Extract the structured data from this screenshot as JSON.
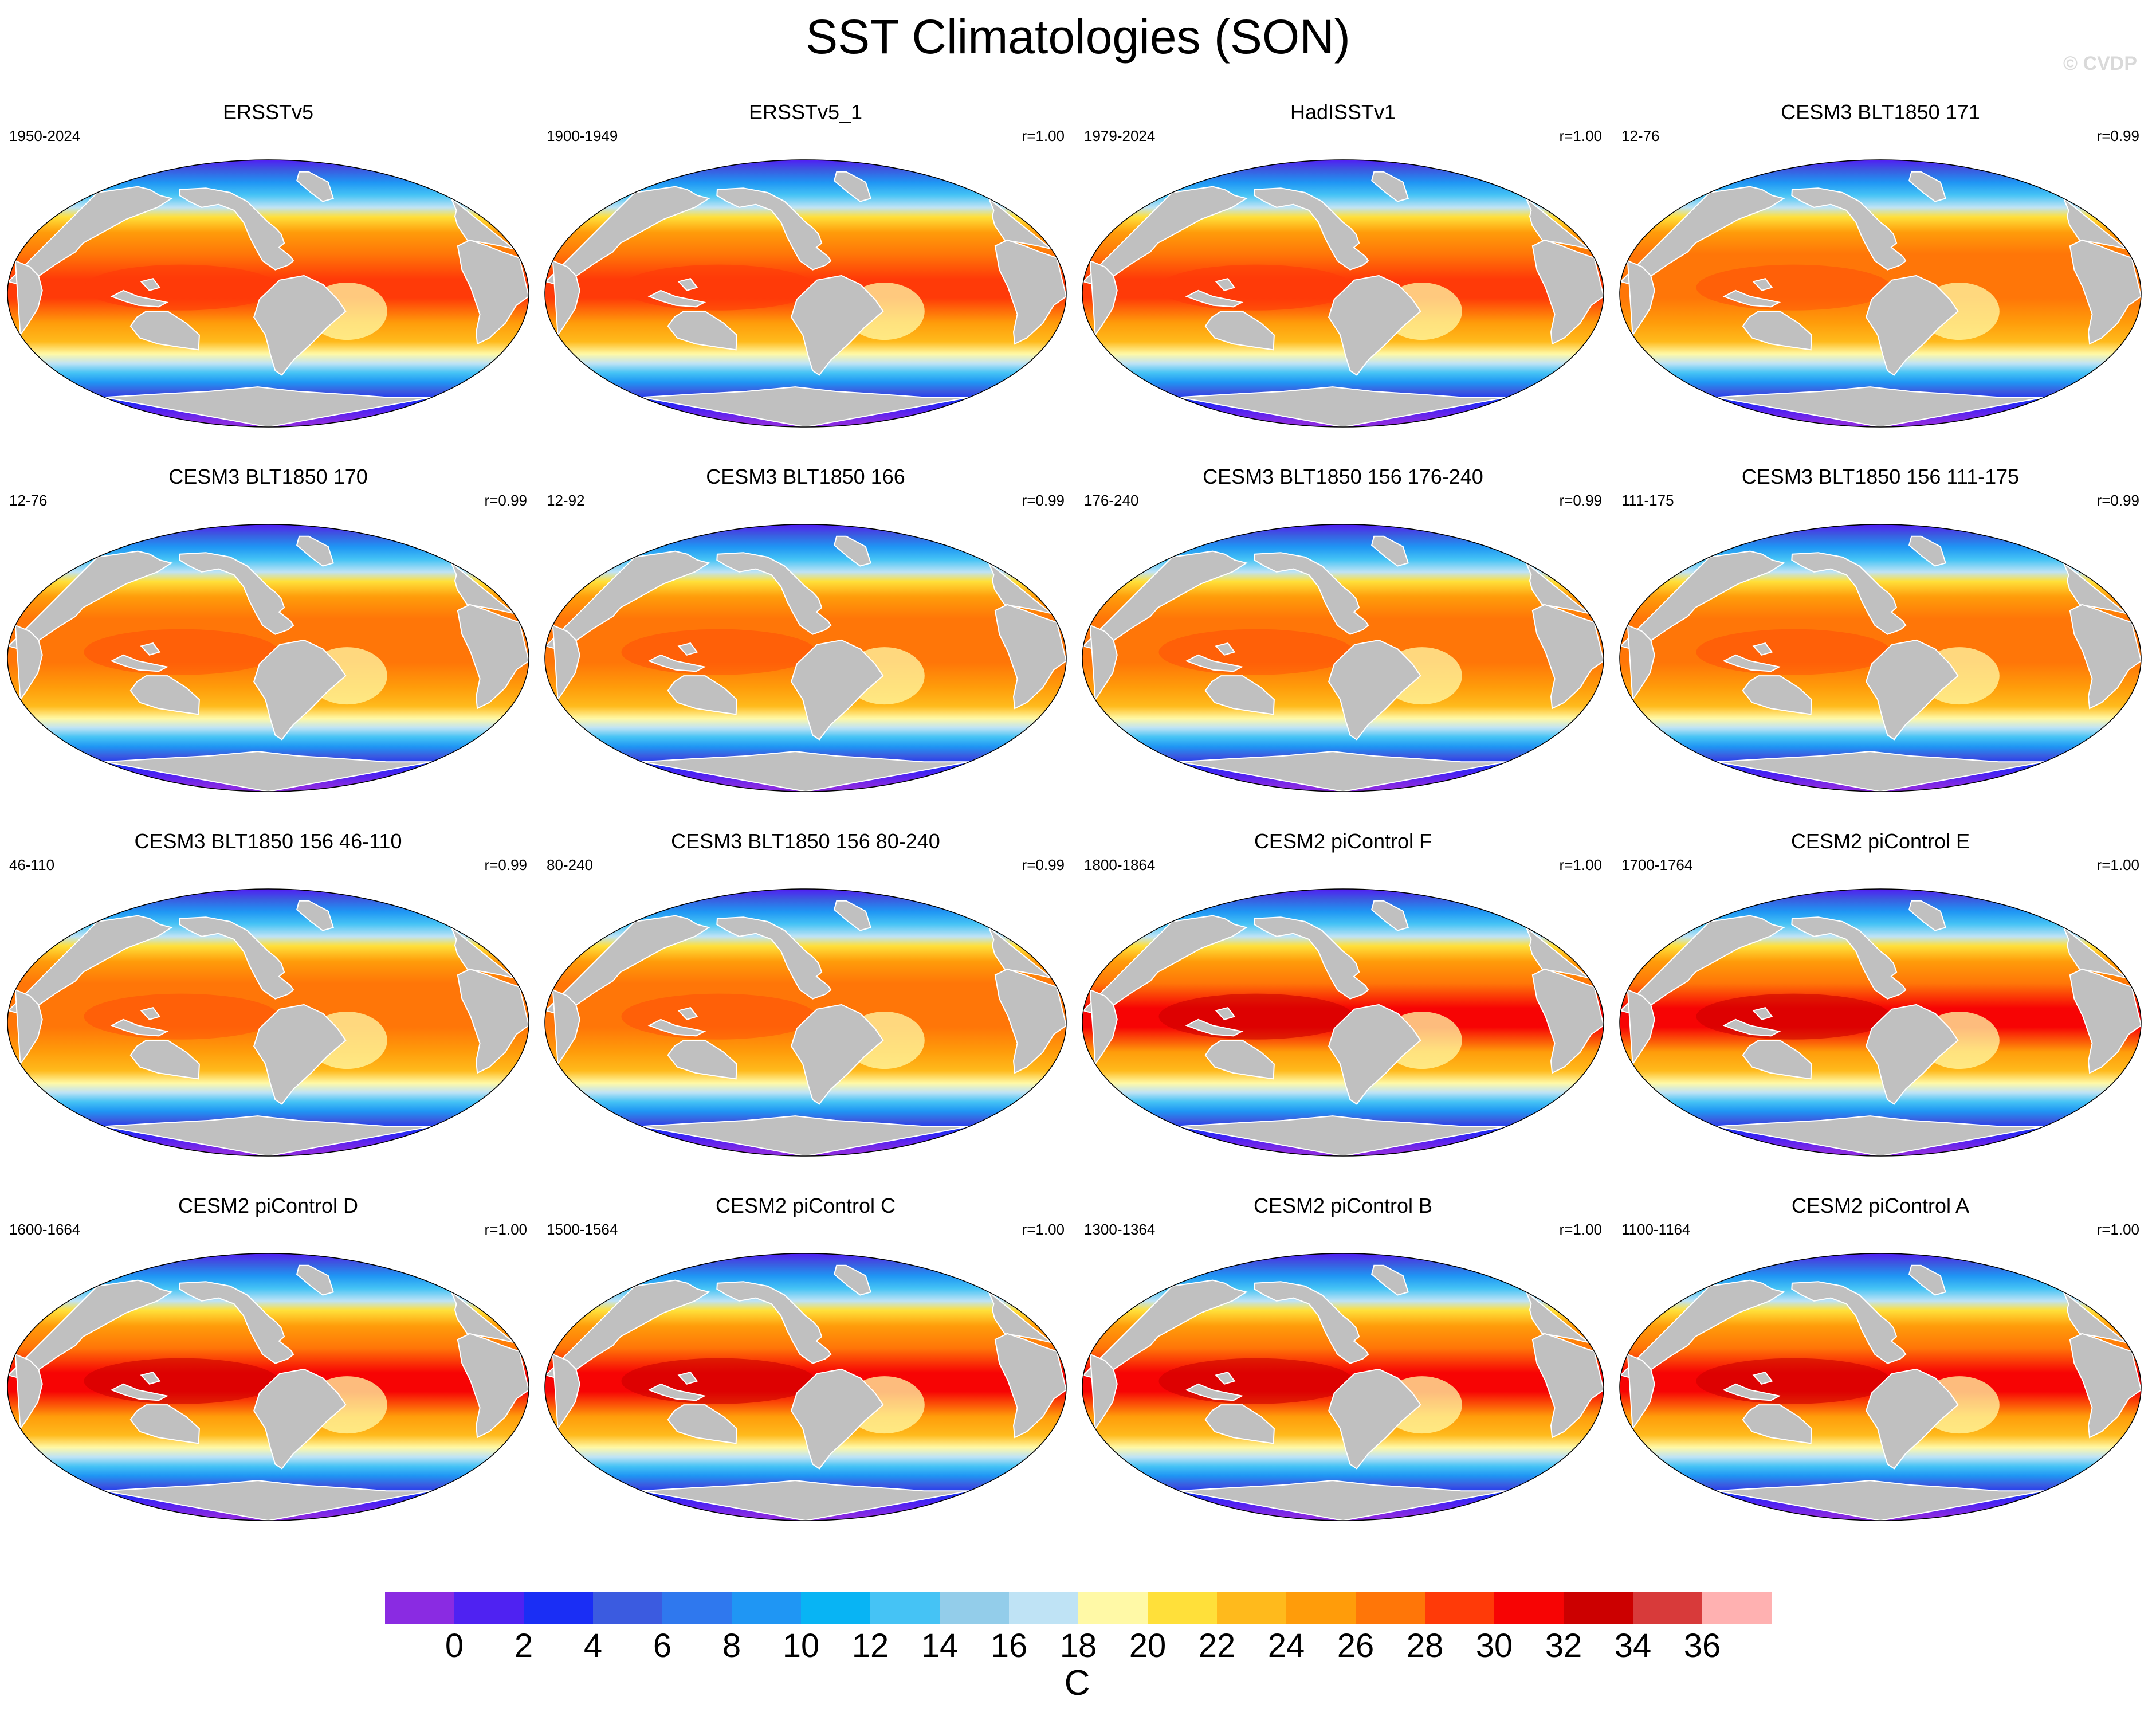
{
  "title": "SST Climatologies (SON)",
  "watermark": "© CVDP",
  "panels": [
    {
      "title": "ERSSTv5",
      "years": "1950-2024",
      "r": "",
      "style": "obs"
    },
    {
      "title": "ERSSTv5_1",
      "years": "1900-1949",
      "r": "r=1.00",
      "style": "obs"
    },
    {
      "title": "HadISSTv1",
      "years": "1979-2024",
      "r": "r=1.00",
      "style": "obs2"
    },
    {
      "title": "CESM3 BLT1850 171",
      "years": "12-76",
      "r": "r=0.99",
      "style": "cesm3"
    },
    {
      "title": "CESM3 BLT1850 170",
      "years": "12-76",
      "r": "r=0.99",
      "style": "cesm3"
    },
    {
      "title": "CESM3 BLT1850 166",
      "years": "12-92",
      "r": "r=0.99",
      "style": "cesm3"
    },
    {
      "title": "CESM3 BLT1850 156 176-240",
      "years": "176-240",
      "r": "r=0.99",
      "style": "cesm3"
    },
    {
      "title": "CESM3 BLT1850 156 111-175",
      "years": "111-175",
      "r": "r=0.99",
      "style": "cesm3"
    },
    {
      "title": "CESM3 BLT1850 156 46-110",
      "years": "46-110",
      "r": "r=0.99",
      "style": "cesm3"
    },
    {
      "title": "CESM3 BLT1850 156 80-240",
      "years": "80-240",
      "r": "r=0.99",
      "style": "cesm3"
    },
    {
      "title": "CESM2 piControl F",
      "years": "1800-1864",
      "r": "r=1.00",
      "style": "cesm2"
    },
    {
      "title": "CESM2 piControl E",
      "years": "1700-1764",
      "r": "r=1.00",
      "style": "cesm2"
    },
    {
      "title": "CESM2 piControl D",
      "years": "1600-1664",
      "r": "r=1.00",
      "style": "cesm2"
    },
    {
      "title": "CESM2 piControl C",
      "years": "1500-1564",
      "r": "r=1.00",
      "style": "cesm2"
    },
    {
      "title": "CESM2 piControl B",
      "years": "1300-1364",
      "r": "r=1.00",
      "style": "cesm2"
    },
    {
      "title": "CESM2 piControl A",
      "years": "1100-1164",
      "r": "r=1.00",
      "style": "cesm2"
    }
  ],
  "colorbar": {
    "unit": "C",
    "labels": [
      "0",
      "2",
      "4",
      "6",
      "8",
      "10",
      "12",
      "14",
      "16",
      "18",
      "20",
      "22",
      "24",
      "26",
      "28",
      "30",
      "32",
      "34",
      "36"
    ],
    "colors": [
      "#8a2be2",
      "#4f22f2",
      "#1a2ef5",
      "#3b5be0",
      "#2f78ee",
      "#1f96f4",
      "#08b4f4",
      "#45c3f5",
      "#93cdea",
      "#bfe3f5",
      "#fff9a6",
      "#ffe03a",
      "#ffba1c",
      "#ff9c0a",
      "#ff7608",
      "#ff3a08",
      "#f70404",
      "#cc0000",
      "#d83a3a",
      "#ffb1b1"
    ]
  },
  "land_color": "#c0c0c0"
}
